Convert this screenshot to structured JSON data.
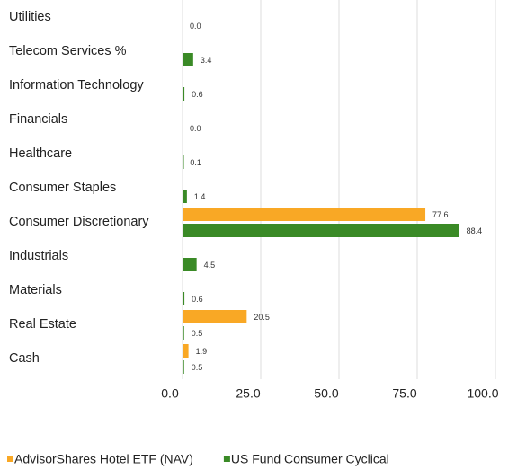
{
  "chart_data": {
    "type": "bar",
    "orientation": "horizontal",
    "categories": [
      "Utilities",
      "Telecom Services %",
      "Information Technology",
      "Financials",
      "Healthcare",
      "Consumer Staples",
      "Consumer Discretionary",
      "Industrials",
      "Materials",
      "Real Estate",
      "Cash"
    ],
    "series": [
      {
        "name": "AdvisorShares Hotel ETF (NAV)",
        "color": "#f9a825",
        "values": [
          null,
          null,
          null,
          null,
          null,
          null,
          77.6,
          null,
          null,
          20.5,
          1.9
        ],
        "value_labels": [
          null,
          null,
          null,
          null,
          null,
          null,
          "77.6",
          null,
          null,
          "20.5",
          "1.9"
        ]
      },
      {
        "name": "US Fund Consumer Cyclical",
        "color": "#3a8a26",
        "values": [
          0,
          3.4,
          0.6,
          0,
          0.1,
          1.4,
          88.4,
          4.5,
          0.6,
          0.5,
          0.5
        ],
        "value_labels": [
          "0.0",
          "3.4",
          "0.6",
          "0.0",
          "0.1",
          "1.4",
          "88.4",
          "4.5",
          "0.6",
          "0.5",
          "0.5"
        ]
      }
    ],
    "xlim": [
      0,
      100
    ],
    "xticks": [
      {
        "value": 0,
        "label": "0.0"
      },
      {
        "value": 25,
        "label": "25.0"
      },
      {
        "value": 50,
        "label": "50.0"
      },
      {
        "value": 75,
        "label": "75.0"
      },
      {
        "value": 100,
        "label": "100.0"
      }
    ],
    "grid": true,
    "legend": "bottom"
  }
}
